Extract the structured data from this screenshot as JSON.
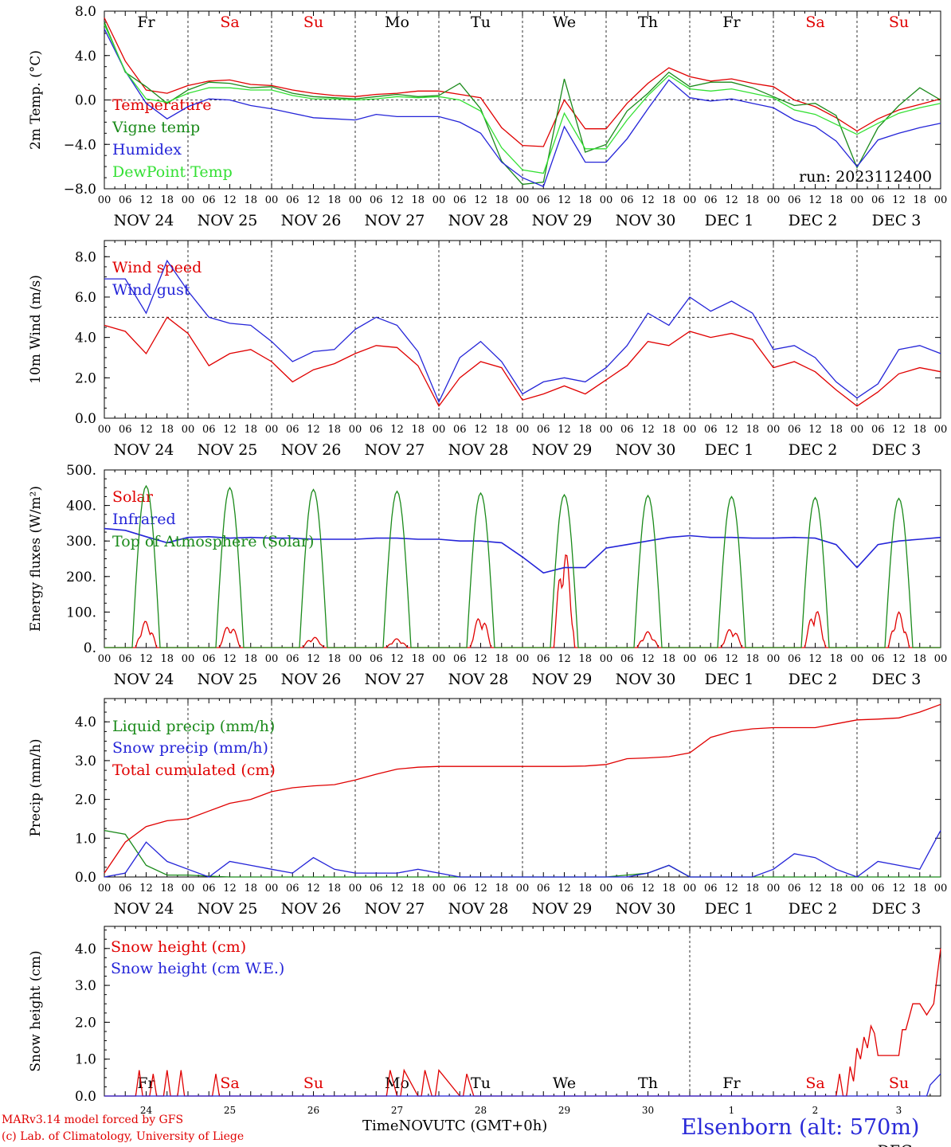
{
  "x_hour_labels": [
    "00",
    "06",
    "12",
    "18"
  ],
  "x_day_labels": [
    "NOV 24",
    "NOV 25",
    "NOV 26",
    "NOV 27",
    "NOV 28",
    "NOV 29",
    "NOV 30",
    "DEC  1",
    "DEC  2",
    "DEC  3"
  ],
  "weekdays": [
    "Fr",
    "Sa",
    "Su",
    "Mo",
    "Tu",
    "We",
    "Th",
    "Fr",
    "Sa",
    "Su"
  ],
  "weekday_colors": [
    "#000000",
    "#e00000",
    "#e00000",
    "#000000",
    "#000000",
    "#000000",
    "#000000",
    "#000000",
    "#e00000",
    "#e00000"
  ],
  "bottom_day_numbers": [
    "24",
    "25",
    "26",
    "27",
    "28",
    "29",
    "30",
    "1",
    "2",
    "3"
  ],
  "footer": {
    "credit_line1": "MARv3.14 model forced by GFS",
    "credit_line2": "(c) Lab. of Climatology, University of Liege",
    "x_title": "TimeNOVUTC (GMT+0h)",
    "station": "Elsenborn (alt: 570m)",
    "bottom_month_overlay": "DEC"
  },
  "chart_data": [
    {
      "type": "line",
      "ylabel": "2m Temp. (°C)",
      "ylim": [
        -8,
        8
      ],
      "yticks": [
        "−8.0",
        "−4.0",
        "0.0",
        "4.0",
        "8.0"
      ],
      "ytick_values": [
        -8,
        -4,
        0,
        4,
        8
      ],
      "ref_line": 0,
      "annotation": "run: 2023112400",
      "x_hours": [
        0,
        6,
        12,
        18,
        24,
        30,
        36,
        42,
        48,
        54,
        60,
        66,
        72,
        78,
        84,
        90,
        96,
        102,
        108,
        114,
        120,
        126,
        132,
        138,
        144,
        150,
        156,
        162,
        168,
        174,
        180,
        186,
        192,
        198,
        204,
        210,
        216,
        222,
        228,
        234,
        240
      ],
      "series": [
        {
          "name": "Temperature",
          "color": "#e00000",
          "values": [
            7.4,
            3.5,
            0.9,
            0.6,
            1.3,
            1.7,
            1.8,
            1.4,
            1.3,
            0.9,
            0.6,
            0.4,
            0.3,
            0.5,
            0.6,
            0.8,
            0.8,
            0.5,
            0.2,
            -2.5,
            -4.1,
            -4.2,
            0.0,
            -2.6,
            -2.6,
            -0.3,
            1.5,
            2.9,
            2.1,
            1.7,
            1.9,
            1.5,
            1.2,
            0.0,
            -0.6,
            -1.6,
            -2.8,
            -1.7,
            -0.9,
            -0.4,
            0.1
          ]
        },
        {
          "name": "Vigne temp",
          "color": "#1a8a1a",
          "values": [
            7.0,
            2.5,
            1.2,
            -0.3,
            0.9,
            1.6,
            1.5,
            1.1,
            1.2,
            0.6,
            0.3,
            0.2,
            0.1,
            0.3,
            0.5,
            0.3,
            0.4,
            1.5,
            -0.8,
            -5.5,
            -7.6,
            -7.4,
            1.9,
            -4.7,
            -4.0,
            -1.0,
            0.6,
            2.5,
            1.2,
            1.6,
            1.6,
            1.1,
            0.3,
            -0.5,
            -0.3,
            -1.4,
            -6.1,
            -2.5,
            -0.5,
            1.1,
            0.0
          ]
        },
        {
          "name": "Humidex",
          "color": "#2424d8",
          "values": [
            6.4,
            2.6,
            -0.3,
            -1.7,
            -0.6,
            0.1,
            0.0,
            -0.5,
            -0.8,
            -1.2,
            -1.6,
            -1.7,
            -1.8,
            -1.3,
            -1.5,
            -1.5,
            -1.5,
            -2.0,
            -3.0,
            -5.6,
            -7.0,
            -7.8,
            -2.4,
            -5.6,
            -5.6,
            -3.5,
            -0.8,
            1.8,
            0.2,
            -0.1,
            0.1,
            -0.3,
            -0.7,
            -1.8,
            -2.4,
            -3.7,
            -6.0,
            -3.6,
            -3.0,
            -2.5,
            -2.1
          ]
        },
        {
          "name": "DewPoint Temp",
          "color": "#33e033",
          "values": [
            6.8,
            2.6,
            0.1,
            -0.2,
            0.6,
            1.1,
            1.1,
            0.9,
            0.9,
            0.4,
            0.1,
            0.1,
            0.0,
            0.1,
            0.3,
            0.2,
            0.3,
            0.0,
            -1.0,
            -4.3,
            -6.3,
            -6.6,
            -1.2,
            -4.4,
            -4.4,
            -1.8,
            0.4,
            2.2,
            1.0,
            0.8,
            1.0,
            0.6,
            0.2,
            -0.9,
            -1.3,
            -2.2,
            -3.1,
            -2.1,
            -1.2,
            -0.7,
            -0.3
          ]
        }
      ]
    },
    {
      "type": "line",
      "ylabel": "10m Wind (m/s)",
      "ylim": [
        0,
        8.8
      ],
      "yticks": [
        "0.0",
        "2.0",
        "4.0",
        "6.0",
        "8.0"
      ],
      "ytick_values": [
        0,
        2,
        4,
        6,
        8
      ],
      "ref_line": 5,
      "x_hours": [
        0,
        6,
        12,
        18,
        24,
        30,
        36,
        42,
        48,
        54,
        60,
        66,
        72,
        78,
        84,
        90,
        96,
        102,
        108,
        114,
        120,
        126,
        132,
        138,
        144,
        150,
        156,
        162,
        168,
        174,
        180,
        186,
        192,
        198,
        204,
        210,
        216,
        222,
        228,
        234,
        240
      ],
      "series": [
        {
          "name": "Wind speed",
          "color": "#e00000",
          "values": [
            4.6,
            4.3,
            3.2,
            5.0,
            4.2,
            2.6,
            3.2,
            3.4,
            2.8,
            1.8,
            2.4,
            2.7,
            3.2,
            3.6,
            3.5,
            2.6,
            0.6,
            2.0,
            2.8,
            2.5,
            0.9,
            1.2,
            1.6,
            1.2,
            1.9,
            2.6,
            3.8,
            3.6,
            4.3,
            4.0,
            4.2,
            3.9,
            2.5,
            2.8,
            2.3,
            1.4,
            0.6,
            1.3,
            2.2,
            2.5,
            2.3
          ]
        },
        {
          "name": "Wind gust",
          "color": "#2424d8",
          "values": [
            6.9,
            6.9,
            5.2,
            7.8,
            6.3,
            5.0,
            4.7,
            4.6,
            3.8,
            2.8,
            3.3,
            3.4,
            4.4,
            5.0,
            4.6,
            3.3,
            0.8,
            3.0,
            3.8,
            2.8,
            1.2,
            1.8,
            2.0,
            1.8,
            2.5,
            3.6,
            5.2,
            4.6,
            6.0,
            5.3,
            5.8,
            5.2,
            3.4,
            3.6,
            3.0,
            1.8,
            1.0,
            1.7,
            3.4,
            3.6,
            3.2
          ]
        }
      ]
    },
    {
      "type": "line",
      "ylabel": "Energy fluxes (W/m²)",
      "ylim": [
        0,
        500
      ],
      "yticks": [
        "0.",
        "100.",
        "200.",
        "300.",
        "400.",
        "500."
      ],
      "ytick_values": [
        0,
        100,
        200,
        300,
        400,
        500
      ],
      "series": [
        {
          "name": "Solar",
          "color": "#e00000",
          "day_peaks": [
            75,
            65,
            30,
            25,
            90,
            280,
            45,
            55,
            110,
            100
          ]
        },
        {
          "name": "Infrared",
          "color": "#2424d8",
          "x_hours": [
            0,
            6,
            12,
            18,
            24,
            30,
            36,
            42,
            48,
            54,
            60,
            66,
            72,
            78,
            84,
            90,
            96,
            102,
            108,
            114,
            120,
            126,
            132,
            138,
            144,
            150,
            156,
            162,
            168,
            174,
            180,
            186,
            192,
            198,
            204,
            210,
            216,
            222,
            228,
            234,
            240
          ],
          "values": [
            335,
            330,
            312,
            295,
            310,
            312,
            308,
            310,
            308,
            308,
            305,
            305,
            305,
            308,
            308,
            305,
            305,
            300,
            300,
            295,
            255,
            210,
            225,
            225,
            280,
            290,
            300,
            310,
            315,
            310,
            310,
            308,
            308,
            310,
            308,
            290,
            225,
            290,
            300,
            305,
            310
          ]
        },
        {
          "name": "Top of Atmosphere (Solar)",
          "color": "#1a8a1a",
          "day_peaks": [
            455,
            450,
            445,
            440,
            435,
            430,
            428,
            425,
            422,
            420
          ]
        }
      ]
    },
    {
      "type": "line",
      "ylabel": "Precip (mm/h)",
      "ylim": [
        0,
        4.6
      ],
      "yticks": [
        "0.0",
        "1.0",
        "2.0",
        "3.0",
        "4.0"
      ],
      "ytick_values": [
        0,
        1,
        2,
        3,
        4
      ],
      "x_hours": [
        0,
        6,
        12,
        18,
        24,
        30,
        36,
        42,
        48,
        54,
        60,
        66,
        72,
        78,
        84,
        90,
        96,
        102,
        108,
        114,
        120,
        126,
        132,
        138,
        144,
        150,
        156,
        162,
        168,
        174,
        180,
        186,
        192,
        198,
        204,
        210,
        216,
        222,
        228,
        234,
        240
      ],
      "series": [
        {
          "name": "Liquid precip (mm/h)",
          "color": "#1a8a1a",
          "values": [
            1.2,
            1.1,
            0.3,
            0.05,
            0.05,
            0.02,
            0.0,
            0.0,
            0.0,
            0.0,
            0.0,
            0.0,
            0.0,
            0.0,
            0.0,
            0.0,
            0.0,
            0.0,
            0.0,
            0.0,
            0.0,
            0.0,
            0.0,
            0.0,
            0.0,
            0.05,
            0.1,
            0.3,
            0.0,
            0.0,
            0.0,
            0.0,
            0.0,
            0.0,
            0.0,
            0.0,
            0.0,
            0.0,
            0.0,
            0.0,
            0.0
          ]
        },
        {
          "name": "Snow precip (mm/h)",
          "color": "#2424d8",
          "values": [
            0.0,
            0.1,
            0.9,
            0.4,
            0.2,
            0.0,
            0.4,
            0.3,
            0.2,
            0.1,
            0.5,
            0.2,
            0.1,
            0.1,
            0.1,
            0.2,
            0.1,
            0.0,
            0.0,
            0.0,
            0.0,
            0.0,
            0.0,
            0.0,
            0.0,
            0.0,
            0.1,
            0.3,
            0.0,
            0.0,
            0.0,
            0.0,
            0.2,
            0.6,
            0.5,
            0.2,
            0.0,
            0.4,
            0.3,
            0.2,
            1.2
          ]
        },
        {
          "name": "Total cumulated (cm)",
          "color": "#e00000",
          "values": [
            0.1,
            0.9,
            1.3,
            1.45,
            1.5,
            1.7,
            1.9,
            2.0,
            2.2,
            2.3,
            2.35,
            2.38,
            2.5,
            2.65,
            2.78,
            2.83,
            2.85,
            2.85,
            2.85,
            2.85,
            2.85,
            2.85,
            2.85,
            2.86,
            2.9,
            3.05,
            3.07,
            3.1,
            3.2,
            3.6,
            3.75,
            3.82,
            3.85,
            3.85,
            3.85,
            3.95,
            4.05,
            4.07,
            4.1,
            4.25,
            4.45
          ]
        }
      ]
    },
    {
      "type": "line",
      "ylabel": "Snow height (cm)",
      "ylim": [
        0,
        4.6
      ],
      "yticks": [
        "0.0",
        "1.0",
        "2.0",
        "3.0",
        "4.0"
      ],
      "ytick_values": [
        0,
        1,
        2,
        3,
        4
      ],
      "series": [
        {
          "name": "Snow height (cm)",
          "color": "#e00000",
          "x_hours": [
            0,
            9,
            10,
            11,
            13,
            14,
            15,
            17,
            18,
            19,
            21,
            22,
            23,
            24,
            31,
            32,
            33,
            40,
            80,
            81,
            82,
            84,
            85,
            86,
            90,
            91,
            92,
            94,
            95,
            96,
            102,
            103,
            104,
            106,
            107,
            108,
            210,
            211,
            212,
            213,
            214,
            215,
            216,
            217,
            218,
            219,
            220,
            221,
            222,
            224,
            226,
            228,
            229,
            230,
            232,
            234,
            236,
            238,
            240
          ],
          "values": [
            0,
            0,
            0.7,
            0,
            0,
            0.6,
            0,
            0,
            0.7,
            0,
            0,
            0.7,
            0,
            0,
            0,
            0.6,
            0,
            0,
            0,
            0,
            0.7,
            0,
            0,
            0.7,
            0,
            0,
            0.7,
            0,
            0,
            0.7,
            0,
            0,
            0.6,
            0,
            0,
            0,
            0,
            0.6,
            0,
            0,
            0.8,
            0.4,
            1.3,
            1.0,
            1.6,
            1.3,
            1.9,
            1.7,
            1.1,
            1.1,
            1.1,
            1.1,
            1.8,
            1.8,
            2.5,
            2.5,
            2.2,
            2.5,
            4.0
          ]
        },
        {
          "name": "Snow height (cm W.E.)",
          "color": "#2424d8",
          "x_hours": [
            0,
            235,
            236,
            237,
            240
          ],
          "values": [
            0,
            0,
            0,
            0.3,
            0.6
          ]
        }
      ]
    }
  ]
}
